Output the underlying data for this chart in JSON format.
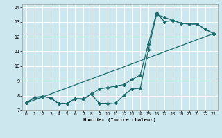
{
  "xlabel": "Humidex (Indice chaleur)",
  "bg_color": "#cce8ee",
  "line_color": "#1a6b6b",
  "grid_color": "#ffffff",
  "xlim": [
    -0.5,
    23.5
  ],
  "ylim": [
    7,
    14.2
  ],
  "yticks": [
    7,
    8,
    9,
    10,
    11,
    12,
    13,
    14
  ],
  "xticks": [
    0,
    1,
    2,
    3,
    4,
    5,
    6,
    7,
    8,
    9,
    10,
    11,
    12,
    13,
    14,
    15,
    16,
    17,
    18,
    19,
    20,
    21,
    22,
    23
  ],
  "line1_x": [
    0,
    1,
    2,
    3,
    4,
    5,
    6,
    7,
    8,
    9,
    10,
    11,
    12,
    13,
    14,
    15,
    16,
    17,
    18,
    19,
    20,
    21,
    22,
    23
  ],
  "line1_y": [
    7.5,
    7.9,
    7.95,
    7.85,
    7.45,
    7.45,
    7.8,
    7.8,
    8.1,
    7.45,
    7.45,
    7.5,
    8.05,
    8.45,
    8.5,
    11.1,
    13.5,
    13.3,
    13.1,
    12.9,
    12.85,
    12.85,
    12.5,
    12.2
  ],
  "line2_x": [
    0,
    1,
    2,
    3,
    4,
    5,
    6,
    7,
    8,
    9,
    10,
    11,
    12,
    13,
    14,
    15,
    16,
    17,
    18,
    19,
    20,
    21,
    22,
    23
  ],
  "line2_y": [
    7.5,
    7.85,
    7.95,
    7.85,
    7.45,
    7.45,
    7.8,
    7.75,
    8.1,
    8.45,
    8.55,
    8.65,
    8.75,
    9.1,
    9.4,
    11.5,
    13.6,
    13.0,
    13.1,
    12.9,
    12.85,
    12.85,
    12.5,
    12.2
  ],
  "line3_x": [
    0,
    23
  ],
  "line3_y": [
    7.5,
    12.2
  ]
}
